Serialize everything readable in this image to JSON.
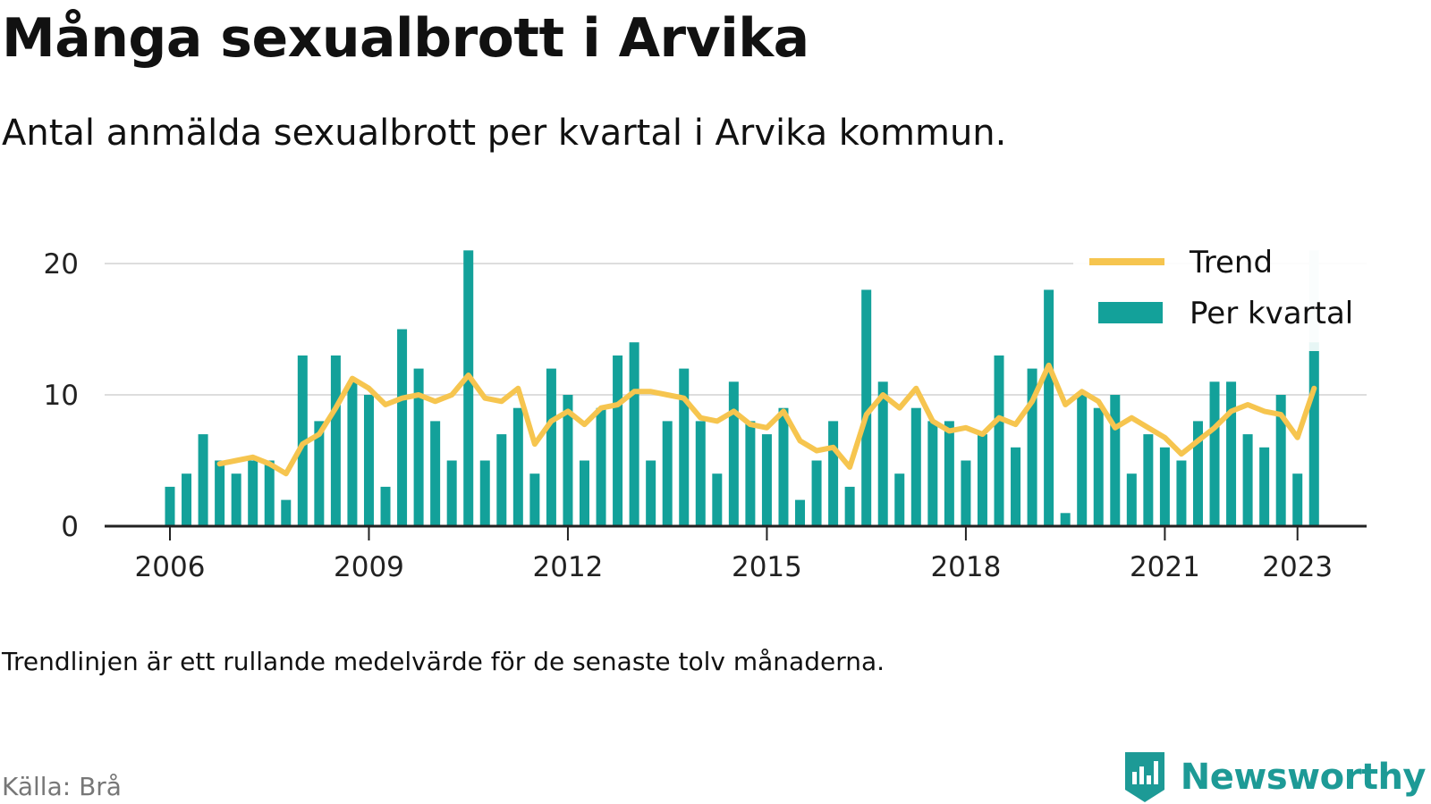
{
  "header": {
    "title": "Många sexualbrott i Arvika",
    "subtitle": "Antal anmälda sexualbrott per kvartal i Arvika kommun."
  },
  "footer": {
    "note": "Trendlinjen är ett rullande medelvärde för de senaste tolv månaderna.",
    "source": "Källa: Brå",
    "brand": "Newsworthy"
  },
  "colors": {
    "bar": "#13a19a",
    "bar_highlight": "#cde9e8",
    "trend": "#f6c54f",
    "grid": "#dddddd",
    "axis": "#222222",
    "brand": "#1d9a96"
  },
  "chart_data": {
    "type": "bar",
    "x": [
      "2006-Q1",
      "2006-Q2",
      "2006-Q3",
      "2006-Q4",
      "2007-Q1",
      "2007-Q2",
      "2007-Q3",
      "2007-Q4",
      "2008-Q1",
      "2008-Q2",
      "2008-Q3",
      "2008-Q4",
      "2009-Q1",
      "2009-Q2",
      "2009-Q3",
      "2009-Q4",
      "2010-Q1",
      "2010-Q2",
      "2010-Q3",
      "2010-Q4",
      "2011-Q1",
      "2011-Q2",
      "2011-Q3",
      "2011-Q4",
      "2012-Q1",
      "2012-Q2",
      "2012-Q3",
      "2012-Q4",
      "2013-Q1",
      "2013-Q2",
      "2013-Q3",
      "2013-Q4",
      "2014-Q1",
      "2014-Q2",
      "2014-Q3",
      "2014-Q4",
      "2015-Q1",
      "2015-Q2",
      "2015-Q3",
      "2015-Q4",
      "2016-Q1",
      "2016-Q2",
      "2016-Q3",
      "2016-Q4",
      "2017-Q1",
      "2017-Q2",
      "2017-Q3",
      "2017-Q4",
      "2018-Q1",
      "2018-Q2",
      "2018-Q3",
      "2018-Q4",
      "2019-Q1",
      "2019-Q2",
      "2019-Q3",
      "2019-Q4",
      "2020-Q1",
      "2020-Q2",
      "2020-Q3",
      "2020-Q4",
      "2021-Q1",
      "2021-Q2",
      "2021-Q3",
      "2021-Q4",
      "2022-Q1",
      "2022-Q2",
      "2022-Q3",
      "2022-Q4",
      "2023-Q1",
      "2023-Q2"
    ],
    "series": [
      {
        "name": "Per kvartal",
        "type": "bar",
        "values": [
          3,
          4,
          7,
          5,
          4,
          5,
          5,
          2,
          13,
          8,
          13,
          11,
          10,
          3,
          15,
          12,
          8,
          5,
          21,
          5,
          7,
          9,
          4,
          12,
          10,
          5,
          9,
          13,
          14,
          5,
          8,
          12,
          8,
          4,
          11,
          8,
          7,
          9,
          2,
          5,
          8,
          3,
          18,
          11,
          4,
          9,
          8,
          8,
          5,
          7,
          13,
          6,
          12,
          18,
          1,
          10,
          9,
          10,
          4,
          7,
          6,
          5,
          8,
          11,
          11,
          7,
          6,
          10,
          4,
          14
        ]
      },
      {
        "name": "Trend",
        "type": "line",
        "values": [
          null,
          null,
          null,
          4.75,
          5.0,
          5.25,
          4.75,
          4.0,
          6.25,
          7.0,
          9.0,
          11.25,
          10.5,
          9.25,
          9.75,
          10.0,
          9.5,
          10.0,
          11.5,
          9.75,
          9.5,
          10.5,
          6.25,
          8.0,
          8.75,
          7.75,
          9.0,
          9.25,
          10.25,
          10.25,
          10.0,
          9.75,
          8.25,
          8.0,
          8.75,
          7.75,
          7.5,
          8.75,
          6.5,
          5.75,
          6.0,
          4.5,
          8.5,
          10.0,
          9.0,
          10.5,
          8.0,
          7.25,
          7.5,
          7.0,
          8.25,
          7.75,
          9.5,
          12.25,
          9.25,
          10.25,
          9.5,
          7.5,
          8.25,
          7.5,
          6.75,
          5.5,
          6.5,
          7.5,
          8.75,
          9.25,
          8.75,
          8.5,
          6.75,
          10.5
        ]
      }
    ],
    "highlight": {
      "index": 69,
      "ghost_value": 21
    },
    "x_ticks": [
      "2006",
      "2009",
      "2012",
      "2015",
      "2018",
      "2021",
      "2023"
    ],
    "y_ticks": [
      "0",
      "10",
      "20"
    ],
    "ylim": [
      0,
      21
    ],
    "grid": true,
    "legend": {
      "position": "top-right",
      "items": [
        "Trend",
        "Per kvartal"
      ]
    }
  }
}
